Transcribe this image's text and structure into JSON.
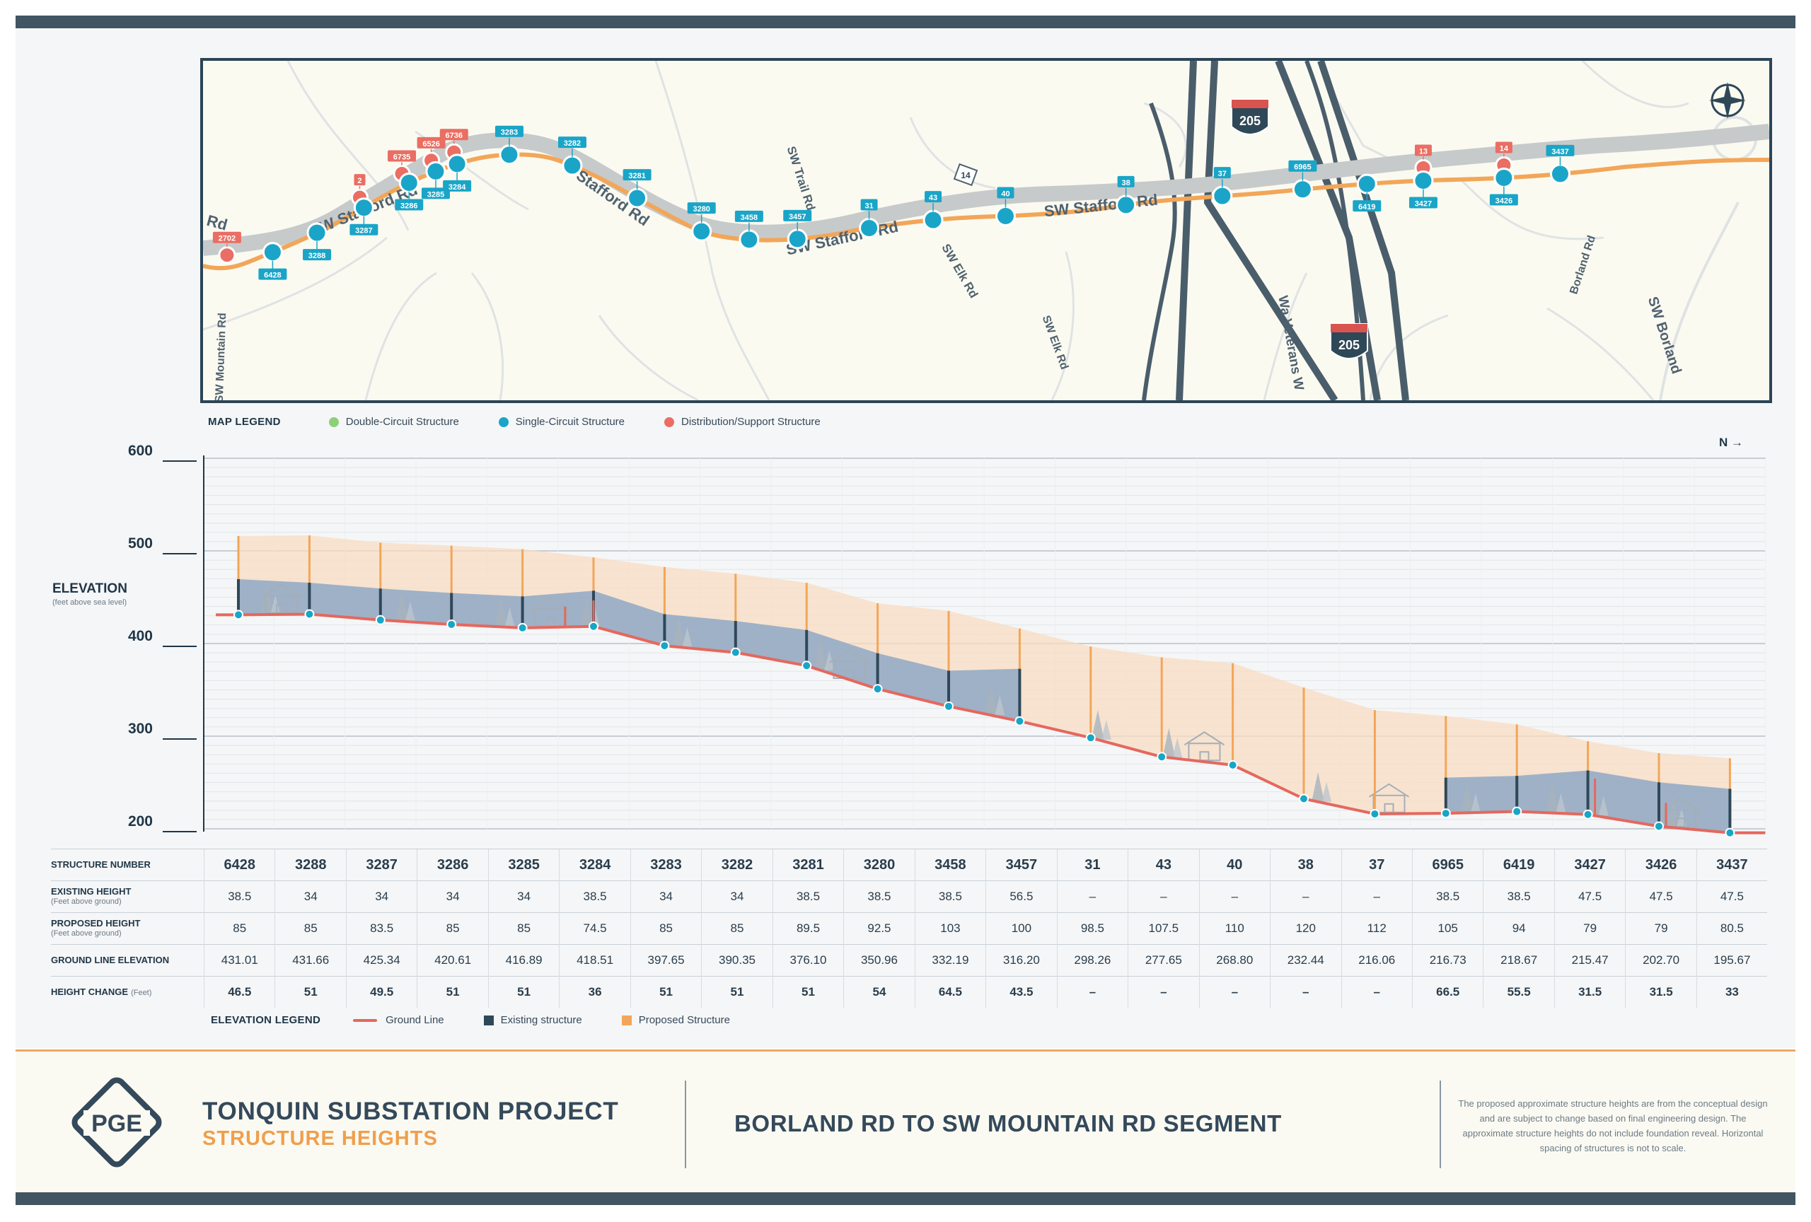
{
  "map": {
    "roads": [
      "SW Stafford Rd",
      "SW Stafford Rd",
      "SW Stafford Rd",
      "SW Trail Rd",
      "SW Elk Rd",
      "SW Elk Rd",
      "Wa Veterans W",
      "Borland Rd",
      "SW Borland",
      "SW Mountain Rd",
      "Rd",
      "Stafford Rd"
    ],
    "highway_shields": [
      "205",
      "205"
    ],
    "route_badge": "14",
    "structures": [
      {
        "id": "2702",
        "type": "distribution"
      },
      {
        "id": "6428",
        "type": "single"
      },
      {
        "id": "3288",
        "type": "single"
      },
      {
        "id": "2",
        "type": "distribution"
      },
      {
        "id": "3287",
        "type": "single"
      },
      {
        "id": "6735",
        "type": "distribution"
      },
      {
        "id": "3286",
        "type": "single"
      },
      {
        "id": "6526",
        "type": "distribution"
      },
      {
        "id": "3285",
        "type": "single"
      },
      {
        "id": "6736",
        "type": "distribution"
      },
      {
        "id": "3284",
        "type": "single"
      },
      {
        "id": "3283",
        "type": "single"
      },
      {
        "id": "3282",
        "type": "single"
      },
      {
        "id": "3281",
        "type": "single"
      },
      {
        "id": "3280",
        "type": "single"
      },
      {
        "id": "3458",
        "type": "single"
      },
      {
        "id": "3457",
        "type": "single"
      },
      {
        "id": "31",
        "type": "single"
      },
      {
        "id": "43",
        "type": "single"
      },
      {
        "id": "40",
        "type": "single"
      },
      {
        "id": "38",
        "type": "single"
      },
      {
        "id": "37",
        "type": "single"
      },
      {
        "id": "6965",
        "type": "single"
      },
      {
        "id": "6419",
        "type": "single"
      },
      {
        "id": "13",
        "type": "distribution"
      },
      {
        "id": "3427",
        "type": "single"
      },
      {
        "id": "14",
        "type": "distribution"
      },
      {
        "id": "3426",
        "type": "single"
      },
      {
        "id": "3437",
        "type": "single"
      }
    ]
  },
  "map_legend": {
    "title": "MAP LEGEND",
    "items": [
      {
        "label": "Double-Circuit Structure",
        "color": "#8fcf7a"
      },
      {
        "label": "Single-Circuit Structure",
        "color": "#1aa5c8"
      },
      {
        "label": "Distribution/Support Structure",
        "color": "#ea6e63"
      }
    ]
  },
  "elevation": {
    "label": "ELEVATION",
    "sublabel": "(feet above sea level)",
    "north": "N →"
  },
  "chart_data": {
    "type": "area",
    "ylabel": "ELEVATION",
    "ylim": [
      200,
      600
    ],
    "yticks": [
      600,
      500,
      400,
      300,
      200
    ],
    "categories": [
      "6428",
      "3288",
      "3287",
      "3286",
      "3285",
      "3284",
      "3283",
      "3282",
      "3281",
      "3280",
      "3458",
      "3457",
      "31",
      "43",
      "40",
      "38",
      "37",
      "6965",
      "6419",
      "3427",
      "3426",
      "3437"
    ],
    "series": [
      {
        "name": "Ground Line",
        "values": [
          431.01,
          431.66,
          425.34,
          420.61,
          416.89,
          418.51,
          397.65,
          390.35,
          376.1,
          350.96,
          332.19,
          316.2,
          298.26,
          277.65,
          268.8,
          232.44,
          216.06,
          216.73,
          218.67,
          215.47,
          202.7,
          195.67
        ]
      },
      {
        "name": "Existing structure",
        "values": [
          38.5,
          34,
          34,
          34,
          34,
          38.5,
          34,
          34,
          38.5,
          38.5,
          38.5,
          56.5,
          null,
          null,
          null,
          null,
          null,
          38.5,
          38.5,
          47.5,
          47.5,
          47.5
        ]
      },
      {
        "name": "Proposed Structure",
        "values": [
          85,
          85,
          83.5,
          85,
          85,
          74.5,
          85,
          85,
          89.5,
          92.5,
          103,
          100,
          98.5,
          107.5,
          110,
          120,
          112,
          105,
          94,
          79,
          79,
          80.5
        ]
      }
    ],
    "colors": {
      "ground": "#e4685e",
      "existing": "#2f4858",
      "existing_fill": "#8fa8c4",
      "proposed": "#f2a658",
      "proposed_fill": "#f8dcc3",
      "node": "#17a6c7"
    },
    "grid": true
  },
  "table": {
    "rows": [
      {
        "label": "STRUCTURE NUMBER",
        "sub": "",
        "style": "num",
        "values": [
          "6428",
          "3288",
          "3287",
          "3286",
          "3285",
          "3284",
          "3283",
          "3282",
          "3281",
          "3280",
          "3458",
          "3457",
          "31",
          "43",
          "40",
          "38",
          "37",
          "6965",
          "6419",
          "3427",
          "3426",
          "3437"
        ]
      },
      {
        "label": "EXISTING HEIGHT",
        "sub": "(Feet above ground)",
        "style": "",
        "values": [
          "38.5",
          "34",
          "34",
          "34",
          "34",
          "38.5",
          "34",
          "34",
          "38.5",
          "38.5",
          "38.5",
          "56.5",
          "–",
          "–",
          "–",
          "–",
          "–",
          "38.5",
          "38.5",
          "47.5",
          "47.5",
          "47.5"
        ]
      },
      {
        "label": "PROPOSED HEIGHT",
        "sub": "(Feet above ground)",
        "style": "",
        "values": [
          "85",
          "85",
          "83.5",
          "85",
          "85",
          "74.5",
          "85",
          "85",
          "89.5",
          "92.5",
          "103",
          "100",
          "98.5",
          "107.5",
          "110",
          "120",
          "112",
          "105",
          "94",
          "79",
          "79",
          "80.5"
        ]
      },
      {
        "label": "GROUND LINE ELEVATION",
        "sub": "",
        "style": "",
        "values": [
          "431.01",
          "431.66",
          "425.34",
          "420.61",
          "416.89",
          "418.51",
          "397.65",
          "390.35",
          "376.10",
          "350.96",
          "332.19",
          "316.20",
          "298.26",
          "277.65",
          "268.80",
          "232.44",
          "216.06",
          "216.73",
          "218.67",
          "215.47",
          "202.70",
          "195.67"
        ]
      },
      {
        "label": "HEIGHT CHANGE",
        "sub": "(Feet)",
        "style": "bold",
        "values": [
          "46.5",
          "51",
          "49.5",
          "51",
          "51",
          "36",
          "51",
          "51",
          "51",
          "54",
          "64.5",
          "43.5",
          "–",
          "–",
          "–",
          "–",
          "–",
          "66.5",
          "55.5",
          "31.5",
          "31.5",
          "33"
        ]
      }
    ]
  },
  "elevation_legend": {
    "title": "ELEVATION LEGEND",
    "items": [
      {
        "label": "Ground Line",
        "color": "#e4685e",
        "shape": "line"
      },
      {
        "label": "Existing structure",
        "color": "#2f4858",
        "shape": "square"
      },
      {
        "label": "Proposed Structure",
        "color": "#f2a658",
        "shape": "square"
      }
    ]
  },
  "footer": {
    "logo": "PGE",
    "title": "TONQUIN SUBSTATION PROJECT",
    "subtitle": "STRUCTURE HEIGHTS",
    "segment": "BORLAND RD TO SW MOUNTAIN RD SEGMENT",
    "disclaimer": "The proposed approximate structure heights are from the conceptual design and are subject to change based on final engineering design. The approximate structure heights do not include foundation reveal. Horizontal spacing of structures is not to scale."
  }
}
